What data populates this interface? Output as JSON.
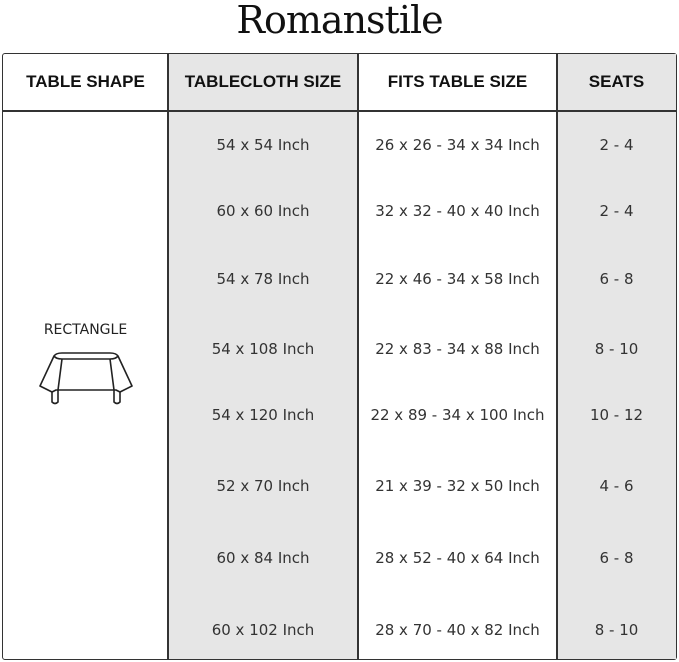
{
  "brand": "Romanstile",
  "headers": [
    "TABLE SHAPE",
    "TABLECLOTH SIZE",
    "FITS TABLE SIZE",
    "SEATS"
  ],
  "shape": {
    "label": "RECTANGLE",
    "icon": "rectangle-table-icon"
  },
  "rows": [
    {
      "size": "54 x 54 Inch",
      "fits": "26 x 26 - 34 x 34 Inch",
      "seats": "2 - 4"
    },
    {
      "size": "60 x 60 Inch",
      "fits": "32 x 32 - 40 x 40 Inch",
      "seats": "2 - 4"
    },
    {
      "size": "54 x 78 Inch",
      "fits": "22 x 46 - 34 x 58 Inch",
      "seats": "6 - 8"
    },
    {
      "size": "54 x 108 Inch",
      "fits": "22 x 83 - 34 x 88 Inch",
      "seats": "8 - 10"
    },
    {
      "size": "54 x 120 Inch",
      "fits": "22 x 89 - 34 x 100 Inch",
      "seats": "10 - 12"
    },
    {
      "size": "52 x 70 Inch",
      "fits": "21 x 39 - 32 x 50 Inch",
      "seats": "4 - 6"
    },
    {
      "size": "60 x 84 Inch",
      "fits": "28 x 52 - 40 x 64 Inch",
      "seats": "6 - 8"
    },
    {
      "size": "60 x 102 Inch",
      "fits": "28 x 70 - 40 x 82 Inch",
      "seats": "8 - 10"
    }
  ],
  "colors": {
    "grey_column": "#e6e6e6",
    "border": "#333333"
  }
}
